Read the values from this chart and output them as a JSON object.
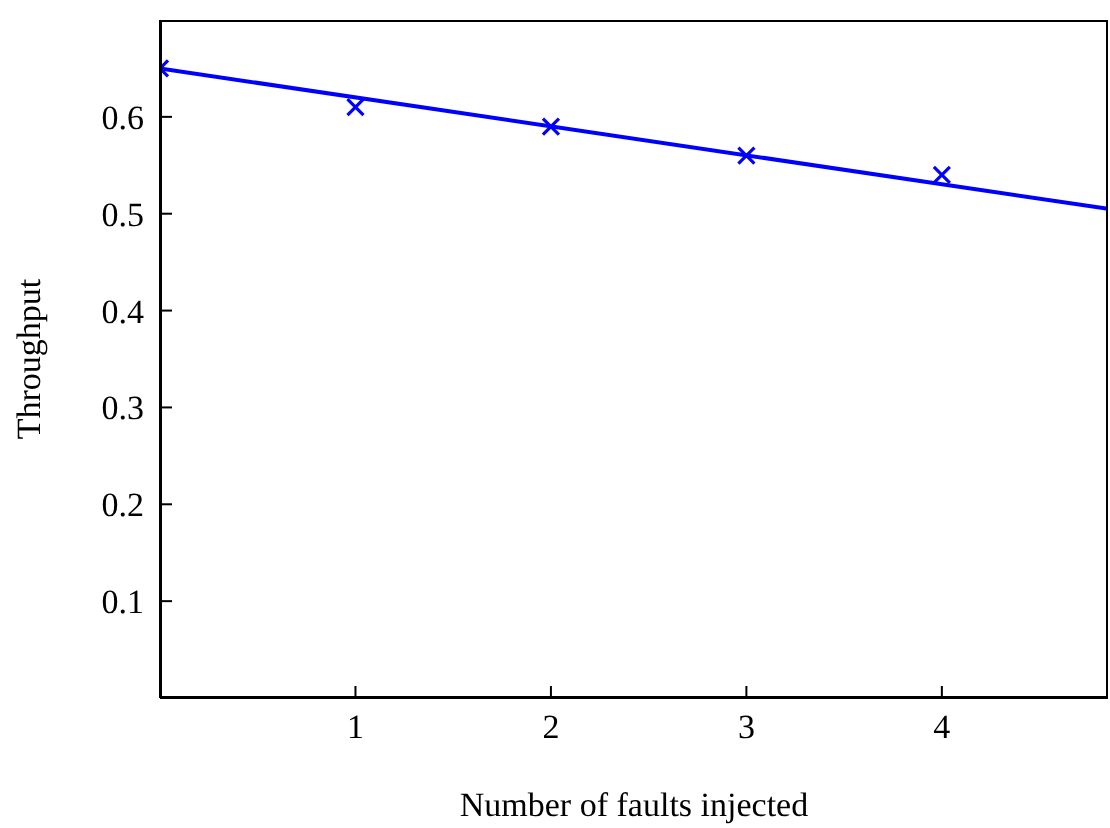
{
  "chart_data": {
    "type": "scatter",
    "xlabel": "Number of faults injected",
    "ylabel": "Throughput",
    "xlim": [
      0,
      4.85
    ],
    "ylim": [
      0,
      0.7
    ],
    "xticks": [
      1,
      2,
      3,
      4
    ],
    "yticks": [
      0.1,
      0.2,
      0.3,
      0.4,
      0.5,
      0.6
    ],
    "grid": false,
    "series": [
      {
        "color": "#0000ff",
        "marker": "cross",
        "x": [
          0,
          1,
          2,
          3,
          4
        ],
        "values": [
          0.65,
          0.61,
          0.59,
          0.56,
          0.54
        ]
      },
      {
        "type": "line",
        "color": "#0000ff",
        "marker": "none",
        "line_style": "solid",
        "x": [
          0,
          4.85
        ],
        "values": [
          0.65,
          0.505
        ]
      }
    ]
  }
}
